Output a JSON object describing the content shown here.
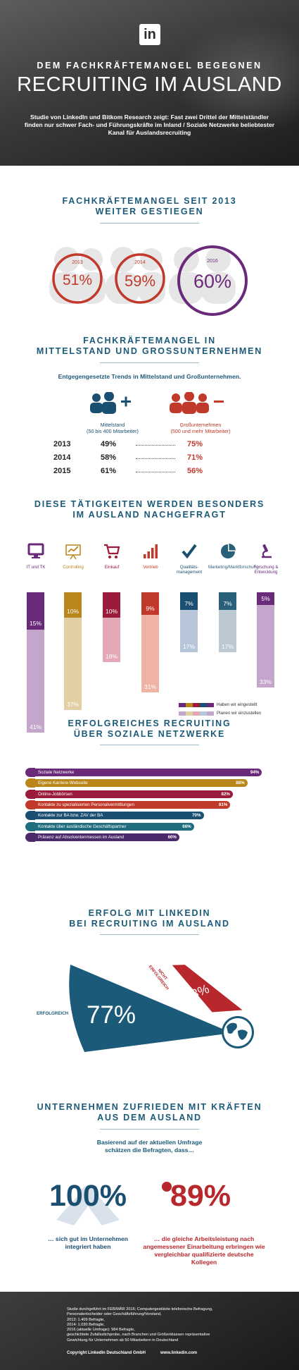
{
  "header": {
    "logo": "in",
    "kicker": "DEM FACHKRÄFTEMANGEL BEGEGNEN",
    "title": "RECRUITING IM AUSLAND",
    "subtitle": "Studie von LinkedIn und Bitkom Research zeigt: Fast zwei Drittel der Mittelständler finden nur schwer Fach- und Führungskräfte im Inland / Soziale Netzwerke beliebtester Kanal für Auslandsrecruiting"
  },
  "section1": {
    "title_line1": "FACHKRÄFTEMANGEL SEIT 2013",
    "title_line2": "WEITER GESTIEGEN",
    "circles": [
      {
        "year": "2013",
        "value": "51%",
        "color": "#c0392b"
      },
      {
        "year": "2014",
        "value": "59%",
        "color": "#c0392b"
      },
      {
        "year": "2016",
        "value": "60%",
        "color": "#6a2a7a"
      }
    ]
  },
  "section2": {
    "title_line1": "FACHKRÄFTEMANGEL IN",
    "title_line2": "MITTELSTAND UND GROSSUNTERNEHMEN",
    "intro": "Entgegengesetzte Trends in Mittelstand und Großunternehmen.",
    "mittelstand_label": "Mittelstand",
    "mittelstand_sub": "(50 bis 400 Mitarbeiter)",
    "gross_label": "Großunternehmen",
    "gross_sub": "(500 und mehr Mitarbeiter)",
    "rows": [
      {
        "year": "2013",
        "mittel": "49%",
        "gross": "75%"
      },
      {
        "year": "2014",
        "mittel": "58%",
        "gross": "71%"
      },
      {
        "year": "2015",
        "mittel": "61%",
        "gross": "56%"
      }
    ]
  },
  "section3": {
    "title_line1": "DIESE TÄTIGKEITEN WERDEN BESONDERS",
    "title_line2": "IM AUSLAND NACHGEFRAGT",
    "legend_hired": "Haben wir eingestellt",
    "legend_planned": "Planen wir einzustellen"
  },
  "chart_data": {
    "type": "bar",
    "categories": [
      "IT und TK",
      "Controlling",
      "Einkauf",
      "Vertrieb",
      "Qualitäts-management",
      "Marketing/Marktforschung",
      "Forschung & Entwicklung"
    ],
    "series": [
      {
        "name": "Haben wir eingestellt",
        "values": [
          15,
          10,
          10,
          9,
          7,
          7,
          5
        ],
        "labels": [
          "15%",
          "10%",
          "10%",
          "9%",
          "7%",
          "7%",
          "5%"
        ]
      },
      {
        "name": "Planen wir einzustellen",
        "values": [
          41,
          37,
          18,
          31,
          17,
          17,
          33
        ],
        "labels": [
          "41%",
          "37%",
          "18%",
          "31%",
          "17%",
          "17%",
          "33%"
        ]
      }
    ],
    "colors_dark": [
      "#6a2a7a",
      "#b8861b",
      "#9b1b3a",
      "#c0392b",
      "#1b4f72",
      "#2a5f7a",
      "#6a2a7a"
    ],
    "colors_light": [
      "#c4a6cc",
      "#e2cfa3",
      "#e3a9b6",
      "#efb3a3",
      "#b6c6d8",
      "#bcc9d2",
      "#c4a6cc"
    ],
    "icons": [
      "monitor-icon",
      "presentation-chart-icon",
      "shopping-cart-icon",
      "bar-chart-icon",
      "checkmark-icon",
      "pie-chart-icon",
      "microscope-icon"
    ]
  },
  "section4": {
    "title_line1": "ERFOLGREICHES RECRUITING",
    "title_line2": "ÜBER SOZIALE NETZWERKE",
    "bars": [
      {
        "label": "Soziale Netzwerke",
        "value": 94,
        "pct": "94%",
        "color": "#6a2a7a"
      },
      {
        "label": "Eigene Karriere-Webseite",
        "value": 88,
        "pct": "88%",
        "color": "#b8861b"
      },
      {
        "label": "Online-Jobbörsen",
        "value": 82,
        "pct": "82%",
        "color": "#9b1b3a"
      },
      {
        "label": "Kontakte zu spezialisierten Personalvermittlungen",
        "value": 81,
        "pct": "81%",
        "color": "#c0392b"
      },
      {
        "label": "Kontakte zur BA bzw. ZAV der BA",
        "value": 70,
        "pct": "70%",
        "color": "#1b4f72"
      },
      {
        "label": "Kontakte über ausländische Geschäftspartner",
        "value": 66,
        "pct": "66%",
        "color": "#1f6d7e"
      },
      {
        "label": "Präsenz auf Absolventenmessen im Ausland",
        "value": 60,
        "pct": "60%",
        "color": "#4a2a6a"
      }
    ]
  },
  "section5": {
    "title_line1": "ERFOLG MIT LINKEDIN",
    "title_line2": "BEI RECRUITING IM AUSLAND",
    "success_label": "ERFOLGREICH",
    "success_value": "77%",
    "fail_label_line1": "NICHT",
    "fail_label_line2": "ERFOLGREICH",
    "fail_value": "23%"
  },
  "section6": {
    "title_line1": "UNTERNEHMEN ZUFRIEDEN MIT KRÄFTEN",
    "title_line2": "AUS DEM AUSLAND",
    "intro_line1": "Basierend auf der aktuellen Umfrage",
    "intro_line2": "schätzen die Befragten, dass…",
    "left_value": "100%",
    "left_text_line1": "… sich gut im Unternehmen",
    "left_text_line2": "integriert haben",
    "right_value": "89%",
    "right_text_line1": "… die gleiche Arbeitsleistung nach",
    "right_text_line2": "angemessener Einarbeitung erbringen wie",
    "right_text_line3": "vergleichbar qualifizierte deutsche Kollegen"
  },
  "footer": {
    "line1": "Studie durchgeführt im FEB/MÄR 2016; Computergestützte telefonische Befragung,",
    "line2": "Personalentscheider oder Geschäftsführung/Vorstand,",
    "line3": "2013: 1.409 Befragte,",
    "line4": "2014: 1.030 Befragte,",
    "line5": "2016 (aktuelle Umfrage): 984 Befragte,",
    "line6": "geschichtete Zufallsstichprobe, nach Branchen und Größenklassen repräsentative",
    "line7": "Gewichtung für Unternehmen ab 50 Mitarbeitern in Deutschland",
    "copyright": "Copyright LinkedIn Deutschland GmbH",
    "url": "www.linkedin.com"
  }
}
